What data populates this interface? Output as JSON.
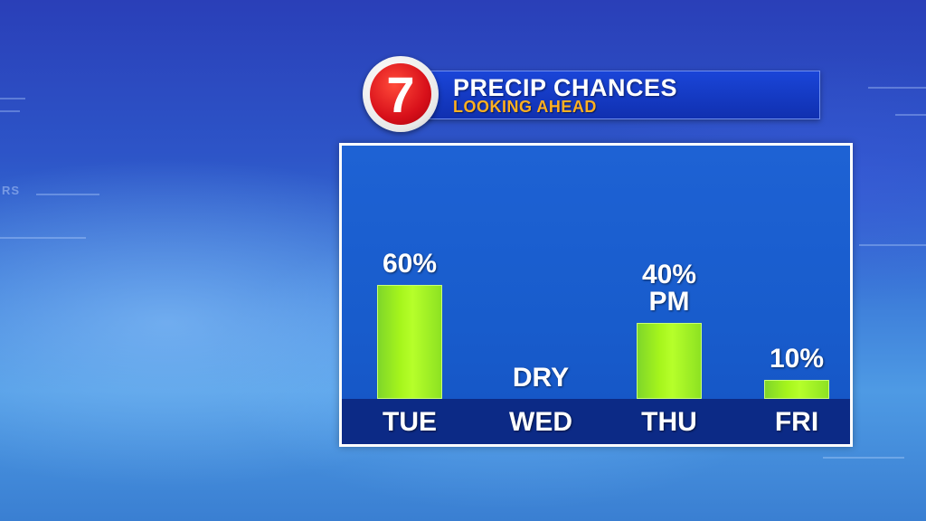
{
  "header": {
    "logo_text": "7",
    "title": "PRECIP CHANCES",
    "subtitle": "LOOKING AHEAD"
  },
  "background": {
    "fragment_text": "RS"
  },
  "colors": {
    "bar": "#a6f51c",
    "panel": "#1e62d4",
    "axis_band": "#0c2a86",
    "title": "#ffffff",
    "subtitle": "#ffb020"
  },
  "chart_data": {
    "type": "bar",
    "title": "PRECIP CHANCES",
    "subtitle": "LOOKING AHEAD",
    "categories": [
      "TUE",
      "WED",
      "THU",
      "FRI"
    ],
    "values": [
      60,
      0,
      40,
      10
    ],
    "unit": "%",
    "ylim": [
      0,
      100
    ],
    "grid": false,
    "data_labels": [
      [
        "60%"
      ],
      [
        "DRY"
      ],
      [
        "40%",
        "PM"
      ],
      [
        "10%"
      ]
    ]
  }
}
